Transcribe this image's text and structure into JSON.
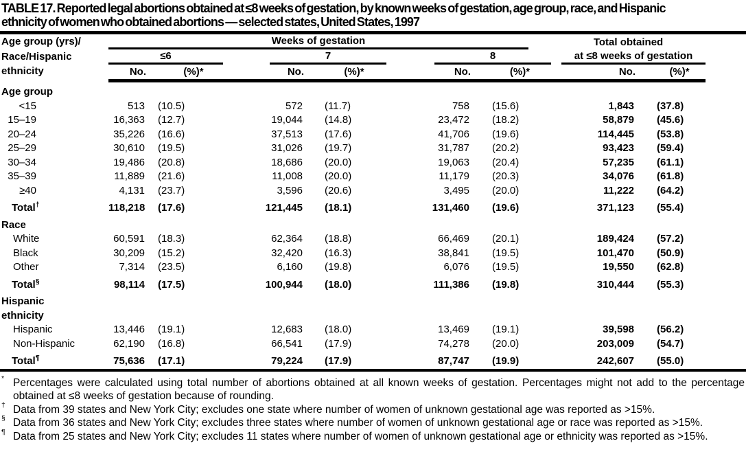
{
  "title": {
    "line1": "TABLE 17. Reported legal abortions obtained at ≤8 weeks of gestation, by known weeks of gestation, age group, race, and Hispanic",
    "line2": "ethnicity of women who obtained abortions — selected states, United States, 1997"
  },
  "table": {
    "col_header": {
      "row_label": [
        "Age group (yrs)/",
        "Race/Hispanic",
        "ethnicity"
      ],
      "weeks_group": "Weeks of gestation",
      "subgroups": [
        "≤6",
        "7",
        "8"
      ],
      "total_group_line1": "Total obtained",
      "total_group_line2": "at ≤8 weeks of gestation",
      "no_label": "No.",
      "pct_label": "(%)*"
    },
    "rows": [
      {
        "type": "section",
        "lines": [
          "Age group"
        ]
      },
      {
        "type": "data",
        "label_style": "age",
        "label": "<15",
        "cells": [
          "513",
          "(10.5)",
          "572",
          "(11.7)",
          "758",
          "(15.6)",
          "1,843",
          "(37.8)"
        ]
      },
      {
        "type": "data",
        "label_style": "age",
        "label": "15–19",
        "cells": [
          "16,363",
          "(12.7)",
          "19,044",
          "(14.8)",
          "23,472",
          "(18.2)",
          "58,879",
          "(45.6)"
        ]
      },
      {
        "type": "data",
        "label_style": "age",
        "label": "20–24",
        "cells": [
          "35,226",
          "(16.6)",
          "37,513",
          "(17.6)",
          "41,706",
          "(19.6)",
          "114,445",
          "(53.8)"
        ]
      },
      {
        "type": "data",
        "label_style": "age",
        "label": "25–29",
        "cells": [
          "30,610",
          "(19.5)",
          "31,026",
          "(19.7)",
          "31,787",
          "(20.2)",
          "93,423",
          "(59.4)"
        ]
      },
      {
        "type": "data",
        "label_style": "age",
        "label": "30–34",
        "cells": [
          "19,486",
          "(20.8)",
          "18,686",
          "(20.0)",
          "19,063",
          "(20.4)",
          "57,235",
          "(61.1)"
        ]
      },
      {
        "type": "data",
        "label_style": "age",
        "label": "35–39",
        "cells": [
          "11,889",
          "(21.6)",
          "11,008",
          "(20.0)",
          "11,179",
          "(20.3)",
          "34,076",
          "(61.8)"
        ]
      },
      {
        "type": "data",
        "label_style": "age",
        "label": "≥40",
        "cells": [
          "4,131",
          "(23.7)",
          "3,596",
          "(20.6)",
          "3,495",
          "(20.0)",
          "11,222",
          "(64.2)"
        ]
      },
      {
        "type": "total",
        "label": "Total",
        "sup": "†",
        "cells": [
          "118,218",
          "(17.6)",
          "121,445",
          "(18.1)",
          "131,460",
          "(19.6)",
          "371,123",
          "(55.4)"
        ]
      },
      {
        "type": "section",
        "lines": [
          "Race"
        ]
      },
      {
        "type": "data",
        "label_style": "name",
        "label": "White",
        "cells": [
          "60,591",
          "(18.3)",
          "62,364",
          "(18.8)",
          "66,469",
          "(20.1)",
          "189,424",
          "(57.2)"
        ]
      },
      {
        "type": "data",
        "label_style": "name",
        "label": "Black",
        "cells": [
          "30,209",
          "(15.2)",
          "32,420",
          "(16.3)",
          "38,841",
          "(19.5)",
          "101,470",
          "(50.9)"
        ]
      },
      {
        "type": "data",
        "label_style": "name",
        "label": "Other",
        "cells": [
          "7,314",
          "(23.5)",
          "6,160",
          "(19.8)",
          "6,076",
          "(19.5)",
          "19,550",
          "(62.8)"
        ]
      },
      {
        "type": "total",
        "label": "Total",
        "sup": "§",
        "cells": [
          "98,114",
          "(17.5)",
          "100,944",
          "(18.0)",
          "111,386",
          "(19.8)",
          "310,444",
          "(55.3)"
        ]
      },
      {
        "type": "section",
        "lines": [
          "Hispanic",
          "ethnicity"
        ]
      },
      {
        "type": "data",
        "label_style": "name",
        "label": "Hispanic",
        "cells": [
          "13,446",
          "(19.1)",
          "12,683",
          "(18.0)",
          "13,469",
          "(19.1)",
          "39,598",
          "(56.2)"
        ]
      },
      {
        "type": "data",
        "label_style": "name",
        "label": "Non-Hispanic",
        "cells": [
          "62,190",
          "(16.8)",
          "66,541",
          "(17.9)",
          "74,278",
          "(20.0)",
          "203,009",
          "(54.7)"
        ]
      },
      {
        "type": "total",
        "label": "Total",
        "sup": "¶",
        "cells": [
          "75,636",
          "(17.1)",
          "79,224",
          "(17.9)",
          "87,747",
          "(19.9)",
          "242,607",
          "(55.0)"
        ]
      }
    ]
  },
  "footnotes": [
    {
      "marker": "*",
      "text": "Percentages were calculated using total number of abortions obtained at all known weeks of gestation. Percentages might not add to the percentage obtained at ≤8 weeks of gestation because of rounding."
    },
    {
      "marker": "†",
      "text": "Data from 39 states and New York City; excludes one state where number of women of unknown gestational age was reported as >15%."
    },
    {
      "marker": "§",
      "text": "Data from 36 states and New York City; excludes three states where number of women of unknown gestational age or race was reported as >15%."
    },
    {
      "marker": "¶",
      "text": "Data from 25 states and New York City; excludes 11 states where number of women of unknown gestational age or ethnicity was reported as >15%."
    }
  ]
}
